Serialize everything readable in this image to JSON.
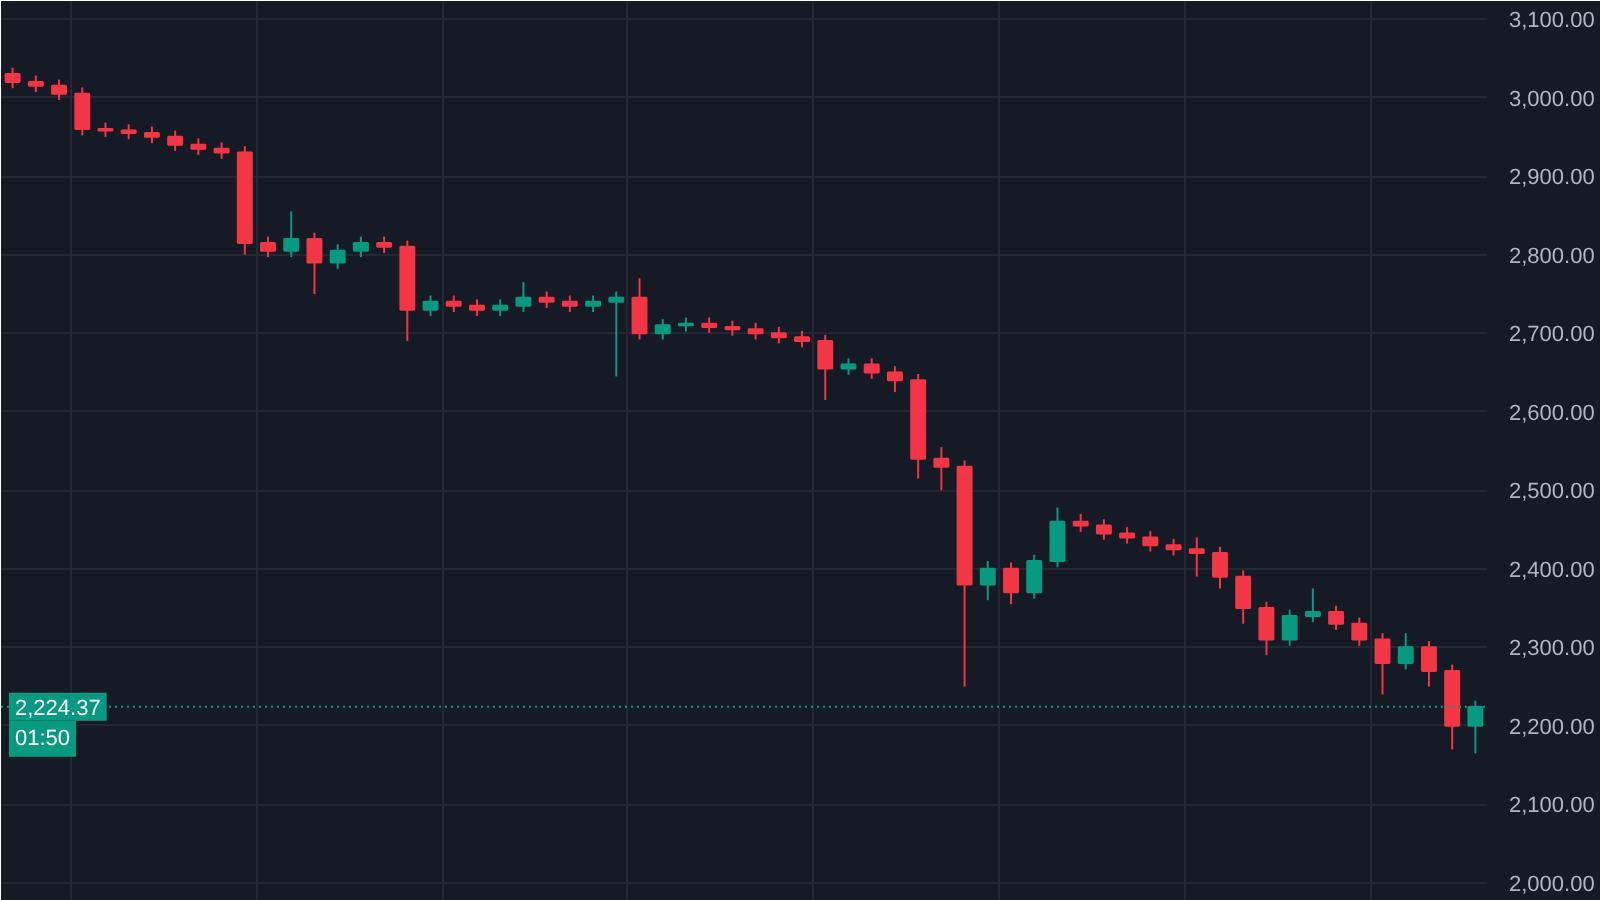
{
  "chart_data": {
    "type": "candlestick",
    "categories": [
      null,
      null,
      null,
      null,
      null,
      null,
      null,
      null,
      null,
      null,
      null,
      null,
      null,
      null,
      null,
      null,
      null,
      null,
      null,
      null,
      null,
      null,
      null,
      null,
      null,
      null,
      null,
      null,
      null,
      null,
      null,
      null,
      null,
      null,
      null,
      null,
      null,
      null,
      null,
      null,
      null,
      null,
      null,
      null,
      null,
      null,
      null,
      null,
      null,
      null,
      null,
      null,
      null,
      null,
      null,
      null,
      null,
      null,
      null,
      null,
      null,
      null,
      null,
      null
    ],
    "ohlc": [
      [
        3030,
        3038,
        3012,
        3020
      ],
      [
        3020,
        3028,
        3007,
        3015
      ],
      [
        3015,
        3023,
        2997,
        3005
      ],
      [
        3005,
        3013,
        2952,
        2960
      ],
      [
        2960,
        2968,
        2950,
        2958
      ],
      [
        2958,
        2966,
        2947,
        2955
      ],
      [
        2955,
        2963,
        2942,
        2950
      ],
      [
        2950,
        2958,
        2932,
        2940
      ],
      [
        2940,
        2948,
        2927,
        2935
      ],
      [
        2935,
        2943,
        2922,
        2930
      ],
      [
        2930,
        2938,
        2800,
        2815
      ],
      [
        2815,
        2823,
        2797,
        2805
      ],
      [
        2805,
        2855,
        2797,
        2820
      ],
      [
        2820,
        2828,
        2750,
        2790
      ],
      [
        2790,
        2813,
        2782,
        2805
      ],
      [
        2805,
        2823,
        2797,
        2815
      ],
      [
        2815,
        2823,
        2802,
        2810
      ],
      [
        2810,
        2818,
        2690,
        2730
      ],
      [
        2730,
        2748,
        2722,
        2740
      ],
      [
        2740,
        2748,
        2727,
        2735
      ],
      [
        2735,
        2743,
        2722,
        2730
      ],
      [
        2730,
        2743,
        2722,
        2735
      ],
      [
        2735,
        2765,
        2727,
        2745
      ],
      [
        2745,
        2753,
        2732,
        2740
      ],
      [
        2740,
        2748,
        2727,
        2735
      ],
      [
        2735,
        2748,
        2727,
        2740
      ],
      [
        2740,
        2753,
        2645,
        2745
      ],
      [
        2745,
        2770,
        2692,
        2700
      ],
      [
        2700,
        2718,
        2692,
        2710
      ],
      [
        2710,
        2720,
        2702,
        2712
      ],
      [
        2712,
        2720,
        2700,
        2708
      ],
      [
        2708,
        2716,
        2697,
        2705
      ],
      [
        2705,
        2713,
        2692,
        2700
      ],
      [
        2700,
        2708,
        2687,
        2695
      ],
      [
        2695,
        2703,
        2682,
        2690
      ],
      [
        2690,
        2698,
        2615,
        2655
      ],
      [
        2655,
        2668,
        2647,
        2660
      ],
      [
        2660,
        2668,
        2642,
        2650
      ],
      [
        2650,
        2658,
        2625,
        2640
      ],
      [
        2640,
        2648,
        2515,
        2540
      ],
      [
        2540,
        2555,
        2500,
        2530
      ],
      [
        2530,
        2538,
        2250,
        2380
      ],
      [
        2380,
        2410,
        2360,
        2400
      ],
      [
        2400,
        2408,
        2355,
        2370
      ],
      [
        2370,
        2418,
        2362,
        2410
      ],
      [
        2410,
        2478,
        2402,
        2460
      ],
      [
        2460,
        2470,
        2447,
        2455
      ],
      [
        2455,
        2463,
        2437,
        2445
      ],
      [
        2445,
        2453,
        2432,
        2440
      ],
      [
        2440,
        2448,
        2422,
        2430
      ],
      [
        2430,
        2438,
        2417,
        2425
      ],
      [
        2425,
        2440,
        2390,
        2420
      ],
      [
        2420,
        2428,
        2375,
        2390
      ],
      [
        2390,
        2398,
        2330,
        2350
      ],
      [
        2350,
        2358,
        2290,
        2310
      ],
      [
        2310,
        2348,
        2302,
        2340
      ],
      [
        2340,
        2375,
        2332,
        2345
      ],
      [
        2345,
        2353,
        2322,
        2330
      ],
      [
        2330,
        2338,
        2302,
        2310
      ],
      [
        2310,
        2318,
        2240,
        2280
      ],
      [
        2280,
        2318,
        2272,
        2300
      ],
      [
        2300,
        2308,
        2250,
        2270
      ],
      [
        2270,
        2278,
        2170,
        2200
      ],
      [
        2200,
        2232,
        2165,
        2224
      ]
    ],
    "colors": [
      "#f23645",
      "#f23645",
      "#f23645",
      "#f23645",
      "#f23645",
      "#f23645",
      "#f23645",
      "#f23645",
      "#f23645",
      "#f23645",
      "#f23645",
      "#f23645",
      "#089981",
      "#f23645",
      "#089981",
      "#089981",
      "#f23645",
      "#f23645",
      "#089981",
      "#f23645",
      "#f23645",
      "#089981",
      "#089981",
      "#f23645",
      "#f23645",
      "#089981",
      "#089981",
      "#f23645",
      "#089981",
      "#089981",
      "#f23645",
      "#f23645",
      "#f23645",
      "#f23645",
      "#f23645",
      "#f23645",
      "#089981",
      "#f23645",
      "#f23645",
      "#f23645",
      "#f23645",
      "#f23645",
      "#089981",
      "#f23645",
      "#089981",
      "#089981",
      "#f23645",
      "#f23645",
      "#f23645",
      "#f23645",
      "#f23645",
      "#f23645",
      "#f23645",
      "#f23645",
      "#f23645",
      "#089981",
      "#089981",
      "#f23645",
      "#f23645",
      "#f23645",
      "#089981",
      "#f23645",
      "#f23645",
      "#089981"
    ],
    "ylim": [
      1977,
      3123
    ],
    "yticks": [
      {
        "value": 2000,
        "label": "2,000.00"
      },
      {
        "value": 2100,
        "label": "2,100.00"
      },
      {
        "value": 2200,
        "label": "2,200.00"
      },
      {
        "value": 2300,
        "label": "2,300.00"
      },
      {
        "value": 2400,
        "label": "2,400.00"
      },
      {
        "value": 2500,
        "label": "2,500.00"
      },
      {
        "value": 2600,
        "label": "2,600.00"
      },
      {
        "value": 2700,
        "label": "2,700.00"
      },
      {
        "value": 2800,
        "label": "2,800.00"
      },
      {
        "value": 2900,
        "label": "2,900.00"
      },
      {
        "value": 3000,
        "label": "3,000.00"
      },
      {
        "value": 3100,
        "label": "3,100.00"
      }
    ],
    "tick_labels": "y",
    "grid": true,
    "ref_lines": [
      {
        "axis": "y",
        "value": 2224.37,
        "label": "2,224.37",
        "color": "#089981",
        "line_style": "dotted"
      }
    ],
    "annotations": [
      "01:50"
    ]
  }
}
